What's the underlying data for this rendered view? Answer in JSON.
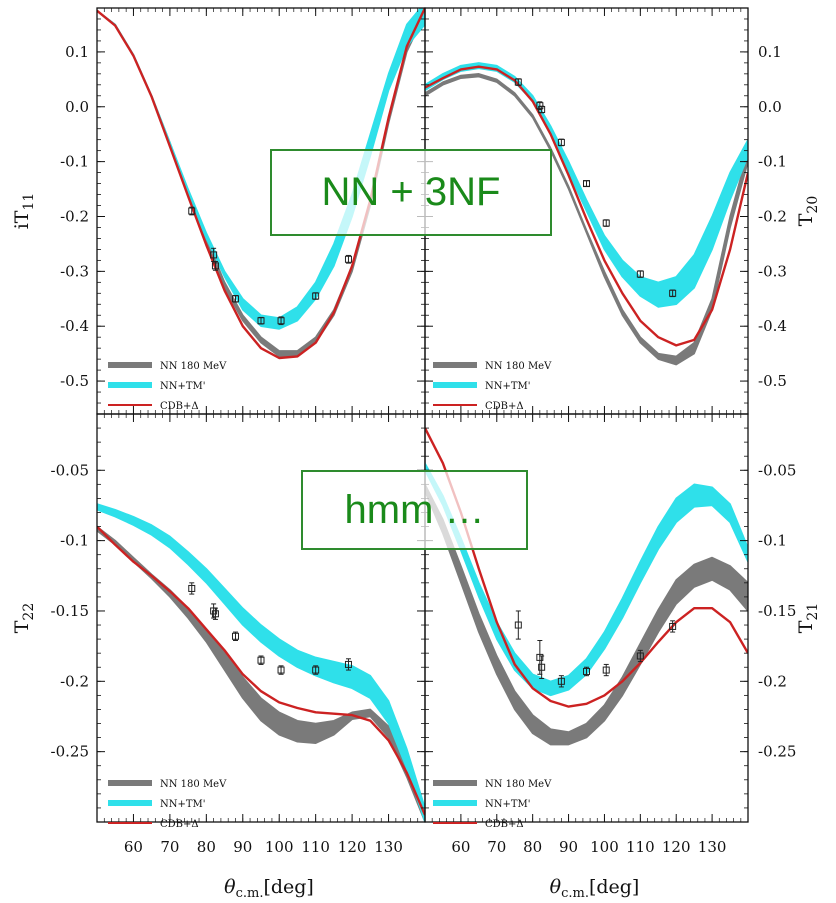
{
  "callouts": {
    "top": "NN + 3NF",
    "bottom": "hmm …"
  },
  "legend": {
    "nn": "NN 180 MeV",
    "tm": "NN+TM'",
    "cdb": "CDB+Δ"
  },
  "colors": {
    "nn": "#7a7a7a",
    "tm": "#2fe0ea",
    "cdb": "#cc2222"
  },
  "chart_data": [
    {
      "type": "line",
      "panel": "top-left",
      "ylabel": "iT11",
      "xlim": [
        50,
        140
      ],
      "ylim": [
        -0.56,
        0.18
      ],
      "yticks": [
        0.1,
        0.0,
        -0.1,
        -0.2,
        -0.3,
        -0.4,
        -0.5
      ],
      "ytick_labels": [
        "0.1",
        "0.0",
        "-0.1",
        "-0.2",
        "-0.3",
        "-0.4",
        "-0.5"
      ],
      "series": [
        {
          "name": "NN 180 MeV",
          "kind": "band",
          "x": [
            50,
            55,
            60,
            65,
            70,
            75,
            80,
            85,
            90,
            95,
            100,
            105,
            110,
            115,
            120,
            125,
            130,
            135,
            140
          ],
          "lo": [
            0.175,
            0.15,
            0.095,
            0.02,
            -0.07,
            -0.16,
            -0.25,
            -0.33,
            -0.39,
            -0.43,
            -0.455,
            -0.455,
            -0.43,
            -0.38,
            -0.3,
            -0.18,
            -0.03,
            0.1,
            0.17
          ],
          "hi": [
            0.175,
            0.15,
            0.095,
            0.02,
            -0.065,
            -0.155,
            -0.24,
            -0.32,
            -0.38,
            -0.42,
            -0.445,
            -0.445,
            -0.42,
            -0.37,
            -0.29,
            -0.17,
            -0.02,
            0.11,
            0.175
          ]
        },
        {
          "name": "NN+TM'",
          "kind": "band",
          "x": [
            50,
            55,
            60,
            65,
            70,
            75,
            80,
            85,
            90,
            95,
            100,
            105,
            110,
            115,
            120,
            125,
            130,
            135,
            140
          ],
          "lo": [
            0.175,
            0.15,
            0.095,
            0.02,
            -0.07,
            -0.16,
            -0.24,
            -0.31,
            -0.37,
            -0.4,
            -0.405,
            -0.39,
            -0.35,
            -0.29,
            -0.2,
            -0.09,
            0.03,
            0.11,
            0.15
          ],
          "hi": [
            0.175,
            0.15,
            0.095,
            0.02,
            -0.065,
            -0.15,
            -0.23,
            -0.3,
            -0.35,
            -0.38,
            -0.385,
            -0.365,
            -0.32,
            -0.25,
            -0.16,
            -0.05,
            0.06,
            0.15,
            0.19
          ]
        },
        {
          "name": "CDB+Δ",
          "kind": "line",
          "x": [
            50,
            55,
            60,
            65,
            70,
            75,
            80,
            85,
            90,
            95,
            100,
            105,
            110,
            115,
            120,
            125,
            130,
            135,
            140
          ],
          "y": [
            0.175,
            0.148,
            0.093,
            0.018,
            -0.072,
            -0.163,
            -0.252,
            -0.335,
            -0.4,
            -0.44,
            -0.458,
            -0.455,
            -0.43,
            -0.375,
            -0.29,
            -0.17,
            -0.02,
            0.11,
            0.18
          ]
        },
        {
          "name": "data",
          "kind": "points",
          "x": [
            76,
            82,
            82.5,
            88,
            95,
            100.5,
            110,
            119
          ],
          "y": [
            -0.19,
            -0.27,
            -0.29,
            -0.35,
            -0.39,
            -0.39,
            -0.345,
            -0.278
          ],
          "err": [
            0.007,
            0.012,
            0.008,
            0.006,
            0.006,
            0.007,
            0.006,
            0.007
          ]
        }
      ]
    },
    {
      "type": "line",
      "panel": "top-right",
      "ylabel": "T20",
      "xlim": [
        50,
        140
      ],
      "ylim": [
        -0.56,
        0.18
      ],
      "yticks": [
        0.1,
        0.0,
        -0.1,
        -0.2,
        -0.3,
        -0.4,
        -0.5
      ],
      "ytick_labels": [
        "0.1",
        "0.0",
        "-0.1",
        "-0.2",
        "-0.3",
        "-0.4",
        "-0.5"
      ],
      "series": [
        {
          "name": "NN 180 MeV",
          "kind": "band",
          "x": [
            50,
            55,
            60,
            65,
            70,
            75,
            80,
            85,
            90,
            95,
            100,
            105,
            110,
            115,
            120,
            125,
            130,
            135,
            140
          ],
          "lo": [
            0.02,
            0.04,
            0.052,
            0.055,
            0.045,
            0.02,
            -0.02,
            -0.08,
            -0.15,
            -0.23,
            -0.31,
            -0.38,
            -0.43,
            -0.46,
            -0.47,
            -0.45,
            -0.37,
            -0.22,
            -0.1
          ],
          "hi": [
            0.025,
            0.045,
            0.057,
            0.06,
            0.05,
            0.025,
            -0.015,
            -0.075,
            -0.145,
            -0.225,
            -0.3,
            -0.37,
            -0.42,
            -0.45,
            -0.455,
            -0.43,
            -0.35,
            -0.2,
            -0.08
          ]
        },
        {
          "name": "NN+TM'",
          "kind": "band",
          "x": [
            50,
            55,
            60,
            65,
            70,
            75,
            80,
            85,
            90,
            95,
            100,
            105,
            110,
            115,
            120,
            125,
            130,
            135,
            140
          ],
          "lo": [
            0.03,
            0.05,
            0.065,
            0.07,
            0.065,
            0.045,
            0.01,
            -0.05,
            -0.12,
            -0.19,
            -0.26,
            -0.31,
            -0.345,
            -0.365,
            -0.36,
            -0.33,
            -0.26,
            -0.17,
            -0.09
          ],
          "hi": [
            0.04,
            0.06,
            0.075,
            0.08,
            0.075,
            0.055,
            0.02,
            -0.035,
            -0.1,
            -0.17,
            -0.235,
            -0.28,
            -0.31,
            -0.32,
            -0.31,
            -0.27,
            -0.2,
            -0.12,
            -0.06
          ]
        },
        {
          "name": "CDB+Δ",
          "kind": "line",
          "x": [
            50,
            55,
            60,
            65,
            70,
            75,
            80,
            85,
            90,
            95,
            100,
            105,
            110,
            115,
            120,
            125,
            130,
            135,
            140
          ],
          "y": [
            0.035,
            0.052,
            0.068,
            0.073,
            0.068,
            0.048,
            0.01,
            -0.05,
            -0.125,
            -0.205,
            -0.28,
            -0.34,
            -0.39,
            -0.42,
            -0.435,
            -0.425,
            -0.37,
            -0.26,
            -0.12
          ]
        },
        {
          "name": "data",
          "kind": "points",
          "x": [
            76,
            82,
            82.5,
            88,
            95,
            100.5,
            110,
            119
          ],
          "y": [
            0.045,
            0.002,
            -0.005,
            -0.065,
            -0.14,
            -0.212,
            -0.305,
            -0.34
          ],
          "err": [
            0.006,
            0.007,
            0.006,
            0.006,
            0.005,
            0.006,
            0.006,
            0.006
          ]
        }
      ]
    },
    {
      "type": "line",
      "panel": "bottom-left",
      "ylabel": "T22",
      "xlabel": "θc.m.[deg]",
      "xlim": [
        50,
        140
      ],
      "xticks": [
        60,
        70,
        80,
        90,
        100,
        110,
        120,
        130
      ],
      "xtick_labels": [
        "60",
        "70",
        "80",
        "90",
        "100",
        "110",
        "120",
        "130"
      ],
      "ylim": [
        -0.3,
        -0.01
      ],
      "yticks": [
        -0.05,
        -0.1,
        -0.15,
        -0.2,
        -0.25
      ],
      "ytick_labels": [
        "-0.05",
        "-0.1",
        "-0.15",
        "-0.2",
        "-0.25"
      ],
      "series": [
        {
          "name": "NN 180 MeV",
          "kind": "band",
          "x": [
            50,
            55,
            60,
            65,
            70,
            75,
            80,
            85,
            90,
            95,
            100,
            105,
            110,
            115,
            120,
            125,
            130,
            135,
            140
          ],
          "lo": [
            -0.093,
            -0.103,
            -0.115,
            -0.127,
            -0.14,
            -0.155,
            -0.172,
            -0.192,
            -0.212,
            -0.228,
            -0.238,
            -0.243,
            -0.244,
            -0.238,
            -0.227,
            -0.225,
            -0.24,
            -0.268,
            -0.3
          ],
          "hi": [
            -0.09,
            -0.1,
            -0.112,
            -0.124,
            -0.135,
            -0.148,
            -0.163,
            -0.18,
            -0.197,
            -0.212,
            -0.222,
            -0.228,
            -0.23,
            -0.228,
            -0.222,
            -0.22,
            -0.232,
            -0.258,
            -0.29
          ]
        },
        {
          "name": "NN+TM'",
          "kind": "band",
          "x": [
            50,
            55,
            60,
            65,
            70,
            75,
            80,
            85,
            90,
            95,
            100,
            105,
            110,
            115,
            120,
            125,
            130,
            135,
            140
          ],
          "lo": [
            -0.078,
            -0.083,
            -0.089,
            -0.096,
            -0.105,
            -0.117,
            -0.13,
            -0.145,
            -0.16,
            -0.172,
            -0.182,
            -0.19,
            -0.196,
            -0.201,
            -0.205,
            -0.212,
            -0.23,
            -0.262,
            -0.3
          ],
          "hi": [
            -0.074,
            -0.078,
            -0.083,
            -0.089,
            -0.097,
            -0.108,
            -0.12,
            -0.134,
            -0.148,
            -0.16,
            -0.17,
            -0.178,
            -0.183,
            -0.186,
            -0.189,
            -0.196,
            -0.214,
            -0.248,
            -0.29
          ]
        },
        {
          "name": "CDB+Δ",
          "kind": "line",
          "x": [
            50,
            55,
            60,
            65,
            70,
            75,
            80,
            85,
            90,
            95,
            100,
            105,
            110,
            115,
            120,
            125,
            130,
            135,
            140
          ],
          "y": [
            -0.09,
            -0.103,
            -0.115,
            -0.125,
            -0.136,
            -0.148,
            -0.163,
            -0.178,
            -0.195,
            -0.207,
            -0.215,
            -0.219,
            -0.222,
            -0.223,
            -0.224,
            -0.228,
            -0.242,
            -0.265,
            -0.295
          ]
        },
        {
          "name": "data",
          "kind": "points",
          "x": [
            76,
            82,
            82.5,
            88,
            95,
            100.5,
            110,
            119
          ],
          "y": [
            -0.134,
            -0.15,
            -0.152,
            -0.168,
            -0.185,
            -0.192,
            -0.192,
            -0.188
          ],
          "err": [
            0.004,
            0.005,
            0.004,
            0.003,
            0.003,
            0.003,
            0.003,
            0.004
          ]
        }
      ]
    },
    {
      "type": "line",
      "panel": "bottom-right",
      "ylabel": "T21",
      "xlabel": "θc.m.[deg]",
      "xlim": [
        50,
        140
      ],
      "xticks": [
        60,
        70,
        80,
        90,
        100,
        110,
        120,
        130
      ],
      "xtick_labels": [
        "60",
        "70",
        "80",
        "90",
        "100",
        "110",
        "120",
        "130"
      ],
      "ylim": [
        -0.3,
        -0.01
      ],
      "yticks": [
        -0.05,
        -0.1,
        -0.15,
        -0.2,
        -0.25
      ],
      "ytick_labels": [
        "-0.05",
        "-0.1",
        "-0.15",
        "-0.2",
        "-0.25"
      ],
      "series": [
        {
          "name": "NN 180 MeV",
          "kind": "band",
          "x": [
            50,
            55,
            60,
            65,
            70,
            75,
            80,
            85,
            90,
            95,
            100,
            105,
            110,
            115,
            120,
            125,
            130,
            135,
            140
          ],
          "lo": [
            -0.065,
            -0.095,
            -0.13,
            -0.165,
            -0.195,
            -0.22,
            -0.237,
            -0.245,
            -0.245,
            -0.24,
            -0.228,
            -0.21,
            -0.188,
            -0.165,
            -0.145,
            -0.133,
            -0.128,
            -0.135,
            -0.15
          ],
          "hi": [
            -0.06,
            -0.085,
            -0.118,
            -0.152,
            -0.182,
            -0.207,
            -0.224,
            -0.234,
            -0.236,
            -0.23,
            -0.217,
            -0.197,
            -0.173,
            -0.149,
            -0.128,
            -0.117,
            -0.112,
            -0.118,
            -0.13
          ]
        },
        {
          "name": "NN+TM'",
          "kind": "band",
          "x": [
            50,
            55,
            60,
            65,
            70,
            75,
            80,
            85,
            90,
            95,
            100,
            105,
            110,
            115,
            120,
            125,
            130,
            135,
            140
          ],
          "lo": [
            -0.05,
            -0.075,
            -0.107,
            -0.14,
            -0.17,
            -0.192,
            -0.205,
            -0.21,
            -0.206,
            -0.195,
            -0.177,
            -0.155,
            -0.13,
            -0.106,
            -0.087,
            -0.076,
            -0.075,
            -0.087,
            -0.115
          ],
          "hi": [
            -0.045,
            -0.068,
            -0.098,
            -0.13,
            -0.158,
            -0.18,
            -0.195,
            -0.2,
            -0.196,
            -0.184,
            -0.165,
            -0.141,
            -0.115,
            -0.09,
            -0.07,
            -0.06,
            -0.062,
            -0.074,
            -0.105
          ]
        },
        {
          "name": "CDB+Δ",
          "kind": "line",
          "x": [
            50,
            55,
            60,
            65,
            70,
            75,
            80,
            85,
            90,
            95,
            100,
            105,
            110,
            115,
            120,
            125,
            130,
            135,
            140
          ],
          "y": [
            -0.02,
            -0.045,
            -0.08,
            -0.12,
            -0.158,
            -0.188,
            -0.205,
            -0.214,
            -0.218,
            -0.216,
            -0.21,
            -0.2,
            -0.187,
            -0.172,
            -0.158,
            -0.148,
            -0.148,
            -0.158,
            -0.18
          ]
        },
        {
          "name": "data",
          "kind": "points",
          "x": [
            76,
            82,
            82.5,
            88,
            95,
            100.5,
            110,
            119
          ],
          "y": [
            -0.16,
            -0.183,
            -0.19,
            -0.2,
            -0.193,
            -0.192,
            -0.182,
            -0.161
          ],
          "err": [
            0.01,
            0.012,
            0.008,
            0.004,
            0.003,
            0.004,
            0.004,
            0.004
          ]
        }
      ]
    }
  ]
}
